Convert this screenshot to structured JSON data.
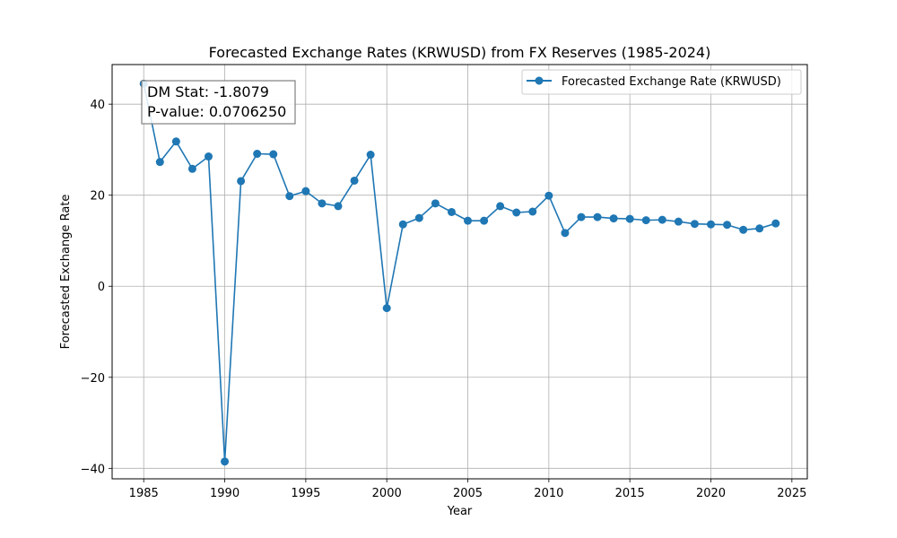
{
  "chart_data": {
    "type": "line",
    "title": "Forecasted Exchange Rates (KRWUSD) from FX Reserves (1985-2024)",
    "xlabel": "Year",
    "ylabel": "Forecasted Exchange Rate",
    "xlim": [
      1983.05,
      2025.95
    ],
    "ylim": [
      -42.3,
      48.7
    ],
    "x_ticks": [
      1985,
      1990,
      1995,
      2000,
      2005,
      2010,
      2015,
      2020,
      2025
    ],
    "y_ticks": [
      -40,
      -20,
      0,
      20,
      40
    ],
    "x_tick_labels": [
      "1985",
      "1990",
      "1995",
      "2000",
      "2005",
      "2010",
      "2015",
      "2020",
      "2025"
    ],
    "y_tick_labels": [
      "−40",
      "−20",
      "0",
      "20",
      "40"
    ],
    "grid": true,
    "legend_position": "top-right",
    "series": [
      {
        "name": "Forecasted Exchange Rate (KRWUSD)",
        "color": "#1f77b4",
        "marker": "circle",
        "x": [
          1985,
          1986,
          1987,
          1988,
          1989,
          1990,
          1991,
          1992,
          1993,
          1994,
          1995,
          1996,
          1997,
          1998,
          1999,
          2000,
          2001,
          2002,
          2003,
          2004,
          2005,
          2006,
          2007,
          2008,
          2009,
          2010,
          2011,
          2012,
          2013,
          2014,
          2015,
          2016,
          2017,
          2018,
          2019,
          2020,
          2021,
          2022,
          2023,
          2024
        ],
        "y": [
          44.5,
          27.3,
          31.8,
          25.8,
          28.5,
          -38.5,
          23.1,
          29.1,
          29.0,
          19.8,
          20.9,
          18.2,
          17.6,
          23.2,
          28.9,
          -4.8,
          13.6,
          15.0,
          18.2,
          16.3,
          14.4,
          14.4,
          17.6,
          16.2,
          16.4,
          19.9,
          11.7,
          15.2,
          15.2,
          14.9,
          14.8,
          14.5,
          14.6,
          14.2,
          13.7,
          13.6,
          13.5,
          12.4,
          12.7,
          13.8
        ]
      }
    ],
    "annotation": {
      "lines": [
        "DM Stat: -1.8079",
        "P-value: 0.0706250"
      ]
    }
  }
}
